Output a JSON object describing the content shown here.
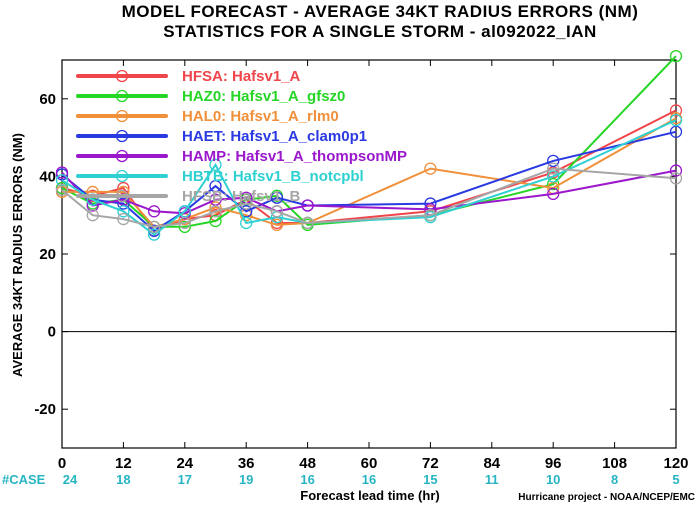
{
  "chart_data": {
    "type": "line",
    "title": "MODEL FORECAST - AVERAGE 34KT RADIUS ERRORS (NM)",
    "subtitle": "STATISTICS FOR A SINGLE STORM - al092022_IAN",
    "xlabel": "Forecast lead time (hr)",
    "ylabel": "AVERAGE 34KT RADIUS ERRORS (NM)",
    "xlim": [
      0,
      120
    ],
    "ylim": [
      -30,
      70
    ],
    "xticks": [
      "0",
      "12",
      "24",
      "36",
      "48",
      "60",
      "72",
      "84",
      "96",
      "108",
      "120"
    ],
    "yticks": [
      "-20",
      "0",
      "20",
      "40",
      "60"
    ],
    "zero_line": 0,
    "case_label": "#CASE",
    "cases": [
      "24",
      "18",
      "17",
      "19",
      "16",
      "16",
      "15",
      "11",
      "10",
      "8",
      "5"
    ],
    "credit": "Hurricane project - NOAA/NCEP/EMC",
    "x": [
      0,
      6,
      12,
      18,
      24,
      30,
      36,
      42,
      48,
      72,
      96,
      120
    ],
    "series": [
      {
        "name": "HFSA: Hafsv1_A",
        "color": "#f0454b",
        "values": [
          37,
          35,
          37,
          26,
          29,
          30,
          34,
          28,
          28,
          31,
          41,
          57
        ]
      },
      {
        "name": "HAZ0: Hafsv1_A_gfsz0",
        "color": "#25d625",
        "values": [
          37,
          33,
          34,
          27,
          27,
          28.5,
          34,
          35,
          27.5,
          30,
          38,
          71
        ]
      },
      {
        "name": "HAL0: Hafsv1_A_rlm0",
        "color": "#f0903a",
        "values": [
          36,
          36,
          36,
          27,
          29,
          32,
          30,
          27.5,
          28,
          42,
          37,
          55
        ]
      },
      {
        "name": "HAET: Hafsv1_A_clam0p1",
        "color": "#2a3ae2",
        "values": [
          40.5,
          34,
          33,
          26,
          31,
          37.5,
          31,
          34.5,
          32.5,
          33,
          44,
          51.5
        ]
      },
      {
        "name": "HAMP: Hafsv1_A_thompsonMP",
        "color": "#9a17cc",
        "values": [
          41,
          32.5,
          34,
          31,
          30.5,
          34,
          34.5,
          31,
          32.5,
          31.5,
          35.5,
          41.5
        ]
      },
      {
        "name": "HBTB: Hafsv1_B_notcpbl",
        "color": "#2fd0d2",
        "values": [
          39,
          34,
          31,
          25,
          31,
          43,
          28,
          29.5,
          28,
          29.5,
          40,
          54.5
        ]
      },
      {
        "name": "HFSB: Hafsv1_B",
        "color": "#a6a6a6",
        "values": [
          36.5,
          30,
          29,
          27,
          28,
          31,
          33,
          31,
          28,
          30,
          42,
          39.5
        ]
      }
    ]
  }
}
